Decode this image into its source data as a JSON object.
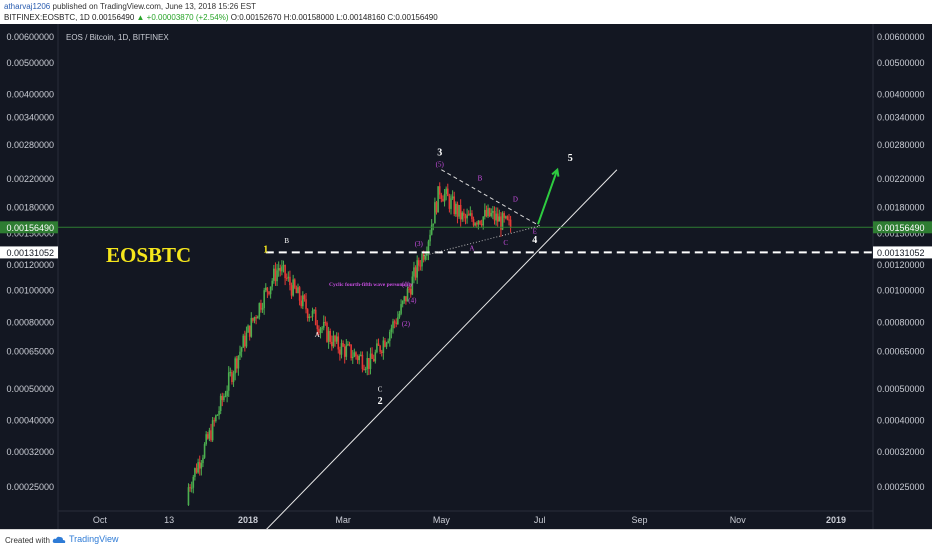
{
  "header": {
    "user": "atharvaj1206",
    "published": "published on TradingView.com, June 13, 2018 15:26 EST",
    "symbol": "BITFINEX:EOSBTC, 1D",
    "last": "0.00156490",
    "change": "▲ +0.00003870 (+2.54%)",
    "open": "O:0.00152670",
    "high": "H:0.00158000",
    "low": "L:0.00148160",
    "close": "C:0.00156490"
  },
  "footer": {
    "created": "Created with",
    "brand": "TradingView"
  },
  "colors": {
    "background": "#131722",
    "candle_up": "#4caf50",
    "candle_down": "#e53935",
    "wave_label_purple": "#c84ee0",
    "title_yellow": "#f5e61c",
    "arrow_green": "#2ecc40",
    "price_tag_green": "#2e7d32"
  },
  "chart_data": {
    "type": "candlestick",
    "title": "EOS / Bitcoin, 1D, BITFINEX",
    "annotation_title": "EOSBTC",
    "y_scale": "log",
    "ylim": [
      0.0002,
      0.0065
    ],
    "y_ticks": [
      "0.00600000",
      "0.00500000",
      "0.00400000",
      "0.00340000",
      "0.00280000",
      "0.00220000",
      "0.00180000",
      "0.00150000",
      "0.00120000",
      "0.00100000",
      "0.00080000",
      "0.00065000",
      "0.00050000",
      "0.00040000",
      "0.00032000",
      "0.00025000"
    ],
    "price_tags": [
      {
        "label": "0.00156490",
        "value": 0.0015649,
        "color": "green"
      },
      {
        "label": "0.00131052",
        "value": 0.00131052,
        "color": "white"
      }
    ],
    "x_ticks": [
      "Oct",
      "13",
      "2018",
      "Mar",
      "May",
      "Jul",
      "Sep",
      "Nov",
      "2019"
    ],
    "x_tick_dates": [
      "2017-10-01",
      "2017-11-13",
      "2018-01-01",
      "2018-03-01",
      "2018-05-01",
      "2018-07-01",
      "2018-09-01",
      "2018-11-01",
      "2019-01-01"
    ],
    "x_range": [
      "2017-09-05",
      "2019-01-24"
    ],
    "ohlc_monthly_approx": [
      {
        "date": "2017-11-25",
        "open": 0.00022,
        "high": 0.00027,
        "low": 0.0002,
        "close": 0.00025
      },
      {
        "date": "2017-12-10",
        "open": 0.00025,
        "high": 0.00042,
        "low": 0.00024,
        "close": 0.00038
      },
      {
        "date": "2017-12-25",
        "open": 0.00038,
        "high": 0.0007,
        "low": 0.00036,
        "close": 0.00062
      },
      {
        "date": "2018-01-10",
        "open": 0.00062,
        "high": 0.001,
        "low": 0.00058,
        "close": 0.00095
      },
      {
        "date": "2018-01-20",
        "open": 0.00095,
        "high": 0.0013,
        "low": 0.0009,
        "close": 0.00118
      },
      {
        "date": "2018-02-05",
        "open": 0.00118,
        "high": 0.00128,
        "low": 0.0008,
        "close": 0.0009
      },
      {
        "date": "2018-02-25",
        "open": 0.0009,
        "high": 0.00095,
        "low": 0.00062,
        "close": 0.00068
      },
      {
        "date": "2018-03-18",
        "open": 0.00068,
        "high": 0.00072,
        "low": 0.00054,
        "close": 0.0006
      },
      {
        "date": "2018-04-05",
        "open": 0.0006,
        "high": 0.0009,
        "low": 0.00058,
        "close": 0.00085
      },
      {
        "date": "2018-04-22",
        "open": 0.00085,
        "high": 0.0015,
        "low": 0.00082,
        "close": 0.0014
      },
      {
        "date": "2018-04-30",
        "open": 0.0014,
        "high": 0.0025,
        "low": 0.00135,
        "close": 0.00205
      },
      {
        "date": "2018-05-15",
        "open": 0.00205,
        "high": 0.00212,
        "low": 0.0015,
        "close": 0.00165
      },
      {
        "date": "2018-06-01",
        "open": 0.00165,
        "high": 0.00205,
        "low": 0.0014,
        "close": 0.0017
      },
      {
        "date": "2018-06-13",
        "open": 0.0015267,
        "high": 0.00158,
        "low": 0.0014816,
        "close": 0.0015649
      }
    ],
    "annotations": {
      "elliott_waves": [
        {
          "label": "1",
          "date": "2018-01-12",
          "price": 0.00131,
          "color": "yellow"
        },
        {
          "label": "2",
          "date": "2018-03-24",
          "price": 0.00045,
          "color": "white"
        },
        {
          "label": "3",
          "date": "2018-04-30",
          "price": 0.0026,
          "color": "white"
        },
        {
          "label": "4",
          "date": "2018-06-28",
          "price": 0.0014,
          "color": "white"
        },
        {
          "label": "5",
          "date": "2018-07-20",
          "price": 0.0025,
          "color": "white"
        }
      ],
      "abc_labels": [
        {
          "label": "B",
          "date": "2018-01-25",
          "price": 0.0014,
          "color": "white"
        },
        {
          "label": "A",
          "date": "2018-02-13",
          "price": 0.00072,
          "color": "white"
        },
        {
          "label": "C",
          "date": "2018-03-24",
          "price": 0.00049,
          "color": "white"
        }
      ],
      "triangle_labels": [
        {
          "label": "(5)",
          "date": "2018-04-30",
          "price": 0.0024
        },
        {
          "label": "B",
          "date": "2018-05-25",
          "price": 0.00218
        },
        {
          "label": "D",
          "date": "2018-06-16",
          "price": 0.00188
        },
        {
          "label": "E",
          "date": "2018-06-28",
          "price": 0.0015
        },
        {
          "label": "C",
          "date": "2018-06-10",
          "price": 0.00138
        },
        {
          "label": "A",
          "date": "2018-05-20",
          "price": 0.00133
        }
      ],
      "impulse_labels": [
        {
          "label": "(3)",
          "date": "2018-04-17",
          "price": 0.00137
        },
        {
          "label": "(1)",
          "date": "2018-04-09",
          "price": 0.00103
        },
        {
          "label": "(4)",
          "date": "2018-04-13",
          "price": 0.00092
        },
        {
          "label": "(2)",
          "date": "2018-04-09",
          "price": 0.00078
        }
      ],
      "note": "Cyclic fourth-fifth wave personality"
    }
  }
}
